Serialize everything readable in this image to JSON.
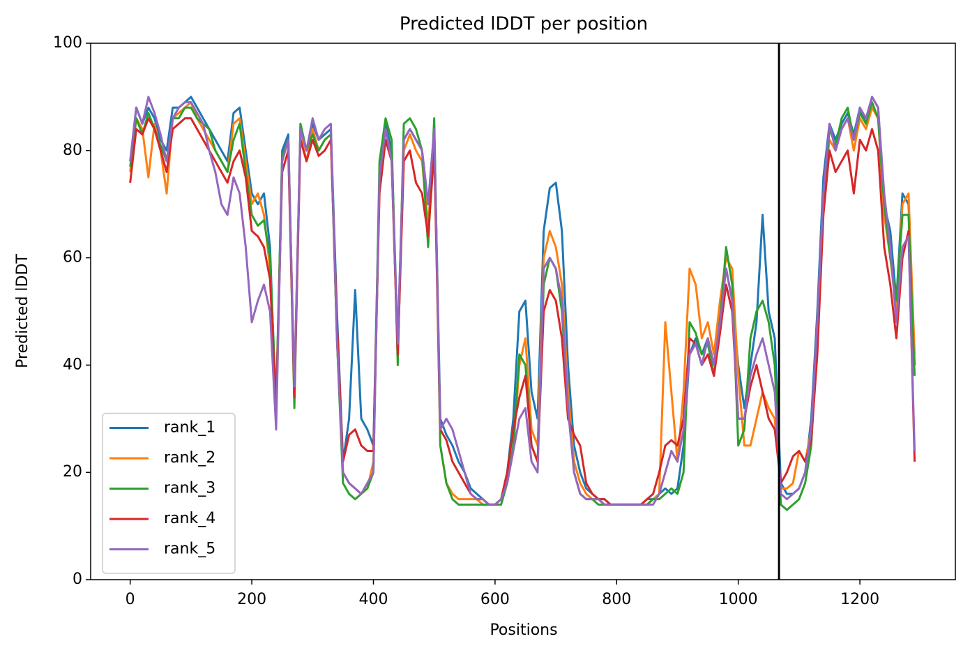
{
  "chart_data": {
    "type": "line",
    "title": "Predicted lDDT per position",
    "xlabel": "Positions",
    "ylabel": "Predicted lDDT",
    "xlim": [
      -65,
      1357
    ],
    "ylim": [
      0,
      100
    ],
    "xticks": [
      0,
      200,
      400,
      600,
      800,
      1000,
      1200
    ],
    "yticks": [
      0,
      20,
      40,
      60,
      80,
      100
    ],
    "vlines": [
      1067
    ],
    "legend": "lower left",
    "grid": false,
    "x": [
      0,
      10,
      20,
      30,
      40,
      50,
      60,
      70,
      80,
      90,
      100,
      110,
      120,
      130,
      140,
      150,
      160,
      170,
      180,
      190,
      200,
      210,
      220,
      230,
      240,
      250,
      260,
      270,
      280,
      290,
      300,
      310,
      320,
      330,
      340,
      350,
      360,
      370,
      380,
      390,
      400,
      410,
      420,
      430,
      440,
      450,
      460,
      470,
      480,
      490,
      500,
      510,
      520,
      530,
      540,
      550,
      560,
      570,
      580,
      590,
      600,
      610,
      620,
      630,
      640,
      650,
      660,
      670,
      680,
      690,
      700,
      710,
      720,
      730,
      740,
      750,
      760,
      770,
      780,
      790,
      800,
      810,
      820,
      830,
      840,
      850,
      860,
      870,
      880,
      890,
      900,
      910,
      920,
      930,
      940,
      950,
      960,
      970,
      980,
      990,
      1000,
      1010,
      1020,
      1030,
      1040,
      1050,
      1060,
      1070,
      1080,
      1090,
      1100,
      1110,
      1120,
      1130,
      1140,
      1150,
      1160,
      1170,
      1180,
      1190,
      1200,
      1210,
      1220,
      1230,
      1240,
      1250,
      1260,
      1270,
      1280,
      1290
    ],
    "series": [
      {
        "name": "rank_1",
        "color": "#1f77b4",
        "values": [
          78,
          88,
          85,
          88,
          86,
          82,
          80,
          88,
          88,
          89,
          90,
          88,
          86,
          84,
          82,
          80,
          78,
          87,
          88,
          80,
          72,
          70,
          72,
          62,
          30,
          80,
          83,
          35,
          84,
          80,
          85,
          82,
          83,
          84,
          50,
          22,
          30,
          54,
          30,
          28,
          25,
          75,
          85,
          80,
          44,
          82,
          84,
          82,
          80,
          70,
          84,
          30,
          27,
          25,
          22,
          20,
          17,
          16,
          15,
          14,
          14,
          15,
          20,
          30,
          50,
          52,
          35,
          30,
          65,
          73,
          74,
          65,
          40,
          25,
          20,
          17,
          16,
          15,
          15,
          14,
          14,
          14,
          14,
          14,
          14,
          15,
          15,
          16,
          17,
          16,
          17,
          25,
          42,
          45,
          42,
          45,
          40,
          50,
          58,
          52,
          40,
          32,
          40,
          48,
          68,
          50,
          45,
          18,
          16,
          16,
          17,
          20,
          30,
          50,
          75,
          85,
          82,
          85,
          87,
          83,
          88,
          85,
          90,
          88,
          70,
          65,
          52,
          72,
          70,
          40
        ]
      },
      {
        "name": "rank_2",
        "color": "#ff7f0e",
        "values": [
          76,
          86,
          84,
          75,
          85,
          80,
          72,
          86,
          87,
          88,
          89,
          86,
          84,
          82,
          80,
          78,
          76,
          85,
          86,
          78,
          70,
          72,
          68,
          58,
          32,
          78,
          82,
          36,
          83,
          78,
          84,
          80,
          82,
          83,
          45,
          20,
          18,
          17,
          16,
          17,
          22,
          74,
          84,
          78,
          42,
          80,
          83,
          80,
          78,
          66,
          82,
          25,
          18,
          16,
          15,
          15,
          15,
          15,
          14,
          14,
          14,
          15,
          18,
          24,
          40,
          45,
          28,
          25,
          60,
          65,
          62,
          55,
          35,
          22,
          18,
          16,
          15,
          15,
          14,
          14,
          14,
          14,
          14,
          14,
          14,
          14,
          15,
          16,
          48,
          35,
          22,
          35,
          58,
          55,
          45,
          48,
          42,
          52,
          60,
          58,
          38,
          25,
          25,
          30,
          35,
          32,
          30,
          17,
          17,
          18,
          24,
          22,
          28,
          48,
          72,
          82,
          80,
          84,
          86,
          80,
          86,
          84,
          88,
          86,
          68,
          60,
          50,
          70,
          72,
          42
        ]
      },
      {
        "name": "rank_3",
        "color": "#2ca02c",
        "values": [
          77,
          86,
          83,
          87,
          84,
          81,
          78,
          86,
          86,
          88,
          88,
          86,
          85,
          84,
          80,
          78,
          76,
          82,
          85,
          76,
          68,
          66,
          67,
          60,
          33,
          79,
          82,
          32,
          85,
          80,
          83,
          80,
          82,
          83,
          45,
          18,
          16,
          15,
          16,
          17,
          20,
          78,
          86,
          82,
          40,
          85,
          86,
          84,
          80,
          62,
          86,
          25,
          18,
          15,
          14,
          14,
          14,
          14,
          14,
          14,
          14,
          14,
          18,
          25,
          42,
          40,
          25,
          22,
          55,
          60,
          58,
          50,
          32,
          20,
          16,
          15,
          15,
          14,
          14,
          14,
          14,
          14,
          14,
          14,
          14,
          14,
          15,
          15,
          16,
          17,
          16,
          20,
          48,
          46,
          42,
          44,
          38,
          48,
          62,
          55,
          25,
          28,
          45,
          50,
          52,
          48,
          40,
          14,
          13,
          14,
          15,
          18,
          25,
          45,
          70,
          84,
          81,
          86,
          88,
          82,
          87,
          85,
          89,
          86,
          70,
          60,
          52,
          68,
          68,
          38
        ]
      },
      {
        "name": "rank_4",
        "color": "#d62728",
        "values": [
          74,
          84,
          83,
          86,
          84,
          80,
          76,
          84,
          85,
          86,
          86,
          84,
          82,
          80,
          78,
          76,
          74,
          78,
          80,
          75,
          65,
          64,
          62,
          56,
          32,
          76,
          80,
          34,
          82,
          78,
          82,
          79,
          80,
          82,
          48,
          22,
          27,
          28,
          25,
          24,
          24,
          72,
          82,
          78,
          42,
          78,
          80,
          74,
          72,
          64,
          80,
          28,
          26,
          22,
          20,
          18,
          16,
          15,
          15,
          14,
          14,
          15,
          20,
          28,
          34,
          38,
          25,
          22,
          50,
          54,
          52,
          45,
          30,
          27,
          25,
          18,
          16,
          15,
          15,
          14,
          14,
          14,
          14,
          14,
          14,
          15,
          16,
          20,
          25,
          26,
          25,
          30,
          45,
          44,
          40,
          42,
          38,
          46,
          55,
          50,
          30,
          30,
          36,
          40,
          35,
          30,
          28,
          18,
          20,
          23,
          24,
          22,
          26,
          42,
          68,
          80,
          76,
          78,
          80,
          72,
          82,
          80,
          84,
          80,
          62,
          55,
          45,
          60,
          65,
          22
        ]
      },
      {
        "name": "rank_5",
        "color": "#9467bd",
        "values": [
          78,
          88,
          85,
          90,
          87,
          83,
          78,
          86,
          88,
          89,
          89,
          87,
          85,
          80,
          76,
          70,
          68,
          75,
          72,
          62,
          48,
          52,
          55,
          50,
          28,
          78,
          82,
          36,
          84,
          80,
          86,
          82,
          84,
          85,
          45,
          20,
          18,
          17,
          16,
          18,
          20,
          75,
          84,
          78,
          44,
          82,
          84,
          82,
          80,
          70,
          84,
          28,
          30,
          28,
          24,
          20,
          16,
          15,
          15,
          14,
          14,
          15,
          18,
          24,
          30,
          32,
          22,
          20,
          58,
          60,
          58,
          52,
          32,
          20,
          16,
          15,
          15,
          15,
          14,
          14,
          14,
          14,
          14,
          14,
          14,
          14,
          14,
          16,
          20,
          24,
          22,
          28,
          42,
          44,
          40,
          45,
          40,
          48,
          58,
          52,
          30,
          30,
          38,
          42,
          45,
          40,
          35,
          16,
          15,
          16,
          17,
          20,
          28,
          48,
          72,
          85,
          80,
          84,
          86,
          82,
          88,
          86,
          90,
          88,
          72,
          62,
          48,
          62,
          64,
          24
        ]
      }
    ]
  }
}
